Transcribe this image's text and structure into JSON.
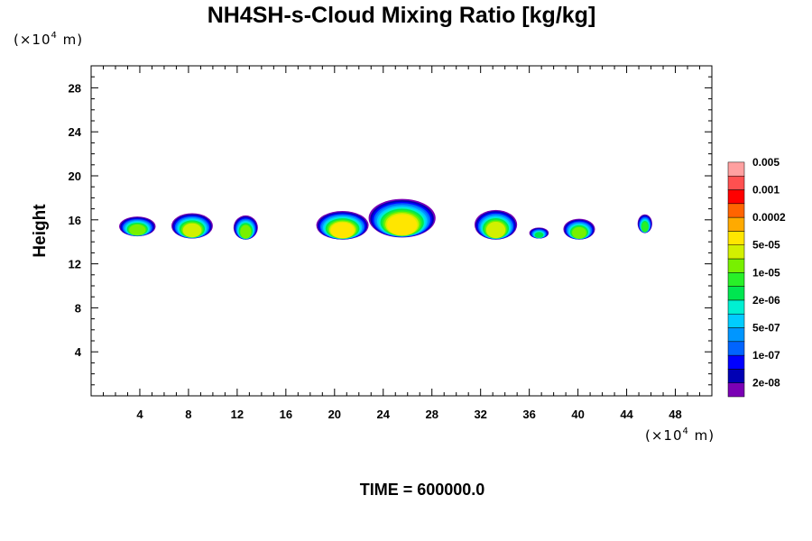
{
  "chart_data": {
    "type": "heatmap",
    "title": "NH4SH-s-Cloud Mixing Ratio [kg/kg]",
    "ylabel": "Height",
    "x_unit": {
      "prefix": "(×10",
      "exp": "4",
      "suffix": " m)"
    },
    "y_unit": {
      "prefix": "(×10",
      "exp": "4",
      "suffix": " m)"
    },
    "xlim": [
      0,
      51
    ],
    "ylim": [
      0,
      30
    ],
    "x_ticks": [
      4,
      8,
      12,
      16,
      20,
      24,
      28,
      32,
      36,
      40,
      44,
      48
    ],
    "y_ticks": [
      4,
      8,
      12,
      16,
      20,
      24,
      28
    ],
    "time_label": "TIME = 600000.0",
    "colorbar": {
      "colors": [
        "#7a00b4",
        "#0000b4",
        "#0000ff",
        "#0064ff",
        "#0096ff",
        "#00ccff",
        "#00f0d2",
        "#00e650",
        "#28f028",
        "#78f000",
        "#d2f000",
        "#ffe600",
        "#ffaa00",
        "#ff6400",
        "#ff0000",
        "#ff5050",
        "#ffa0a0"
      ],
      "labels": [
        "2e-08",
        "1e-07",
        "5e-07",
        "2e-06",
        "1e-05",
        "5e-05",
        "0.0002",
        "0.001",
        "0.005"
      ]
    },
    "cloud_cells": [
      {
        "x": [
          2.3,
          5.3
        ],
        "y_bottom": 14.5,
        "y_top": 16.3,
        "level": 9
      },
      {
        "x": [
          6.6,
          10.0
        ],
        "y_bottom": 14.3,
        "y_top": 16.6,
        "level": 10
      },
      {
        "x": [
          11.7,
          13.7
        ],
        "y_bottom": 14.2,
        "y_top": 16.4,
        "level": 9
      },
      {
        "x": [
          18.5,
          22.8
        ],
        "y_bottom": 14.2,
        "y_top": 16.8,
        "level": 11
      },
      {
        "x": [
          22.8,
          28.3
        ],
        "y_bottom": 14.4,
        "y_top": 17.9,
        "level": 11
      },
      {
        "x": [
          31.5,
          35.0
        ],
        "y_bottom": 14.2,
        "y_top": 16.9,
        "level": 10
      },
      {
        "x": [
          36.0,
          37.6
        ],
        "y_bottom": 14.3,
        "y_top": 15.3,
        "level": 7
      },
      {
        "x": [
          38.8,
          41.4
        ],
        "y_bottom": 14.2,
        "y_top": 16.1,
        "level": 9
      },
      {
        "x": [
          44.9,
          46.1
        ],
        "y_bottom": 14.8,
        "y_top": 16.5,
        "level": 8
      }
    ]
  }
}
